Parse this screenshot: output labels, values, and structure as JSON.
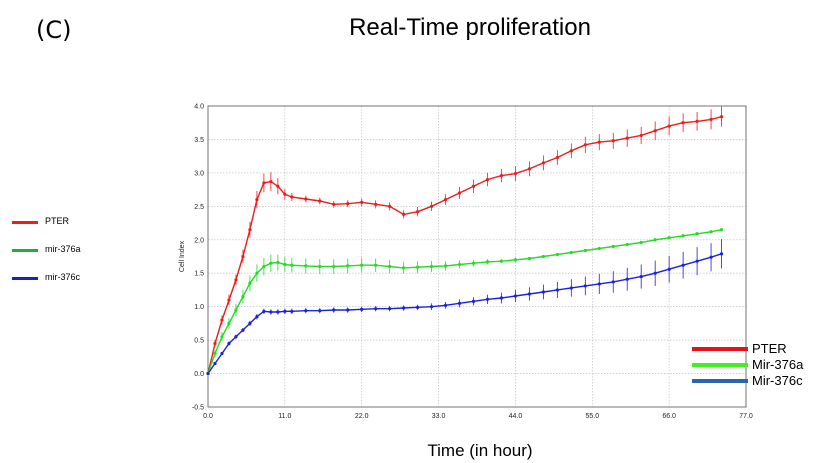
{
  "panel_label": "(C)",
  "chart_data": {
    "type": "line",
    "title": "Real-Time proliferation",
    "xlabel": "Time (in hour)",
    "ylabel": "Cell Index",
    "xlim": [
      0,
      77
    ],
    "ylim": [
      -0.5,
      4.0
    ],
    "xticks": [
      "0.0",
      "11.0",
      "22.0",
      "33.0",
      "44.0",
      "55.0",
      "66.0",
      "77.0"
    ],
    "yticks": [
      "-0.5",
      "0.0",
      "0.5",
      "1.0",
      "1.5",
      "2.0",
      "2.5",
      "3.0",
      "3.5",
      "4.0"
    ],
    "grid": true,
    "series": [
      {
        "name": "PTER",
        "color": "#ee1c1c",
        "x": [
          0,
          1,
          2,
          3,
          4,
          5,
          6,
          7,
          8,
          9,
          10,
          11,
          12,
          14,
          16,
          18,
          20,
          22,
          24,
          26,
          28,
          30,
          32,
          34,
          36,
          38,
          40,
          42,
          44,
          46,
          48,
          50,
          52,
          54,
          56,
          58,
          60,
          62,
          64,
          66,
          68,
          70,
          72,
          73.5
        ],
        "y": [
          0.0,
          0.45,
          0.8,
          1.1,
          1.4,
          1.75,
          2.15,
          2.6,
          2.85,
          2.87,
          2.8,
          2.68,
          2.64,
          2.61,
          2.58,
          2.53,
          2.54,
          2.56,
          2.53,
          2.5,
          2.38,
          2.42,
          2.5,
          2.6,
          2.7,
          2.8,
          2.9,
          2.96,
          2.99,
          3.06,
          3.15,
          3.23,
          3.33,
          3.42,
          3.46,
          3.48,
          3.52,
          3.56,
          3.63,
          3.7,
          3.75,
          3.77,
          3.8,
          3.84
        ],
        "err": [
          0.02,
          0.05,
          0.07,
          0.08,
          0.08,
          0.1,
          0.12,
          0.13,
          0.14,
          0.14,
          0.12,
          0.08,
          0.06,
          0.05,
          0.05,
          0.05,
          0.05,
          0.06,
          0.06,
          0.06,
          0.06,
          0.07,
          0.07,
          0.08,
          0.09,
          0.1,
          0.1,
          0.1,
          0.11,
          0.11,
          0.11,
          0.11,
          0.11,
          0.12,
          0.12,
          0.12,
          0.13,
          0.13,
          0.14,
          0.14,
          0.14,
          0.14,
          0.15,
          0.15
        ]
      },
      {
        "name": "mir-376a",
        "color": "#22dd22",
        "x": [
          0,
          1,
          2,
          3,
          4,
          5,
          6,
          7,
          8,
          9,
          10,
          11,
          12,
          14,
          16,
          18,
          20,
          22,
          24,
          26,
          28,
          30,
          32,
          34,
          36,
          38,
          40,
          42,
          44,
          46,
          48,
          50,
          52,
          54,
          56,
          58,
          60,
          62,
          64,
          66,
          68,
          70,
          72,
          73.5
        ],
        "y": [
          0.0,
          0.3,
          0.55,
          0.75,
          0.95,
          1.15,
          1.35,
          1.5,
          1.6,
          1.65,
          1.66,
          1.63,
          1.62,
          1.61,
          1.6,
          1.6,
          1.61,
          1.62,
          1.62,
          1.6,
          1.58,
          1.59,
          1.6,
          1.61,
          1.63,
          1.65,
          1.67,
          1.68,
          1.7,
          1.72,
          1.75,
          1.78,
          1.81,
          1.84,
          1.87,
          1.9,
          1.93,
          1.96,
          2.0,
          2.03,
          2.06,
          2.09,
          2.12,
          2.15
        ],
        "err": [
          0.02,
          0.05,
          0.07,
          0.08,
          0.09,
          0.1,
          0.12,
          0.13,
          0.13,
          0.13,
          0.12,
          0.11,
          0.11,
          0.11,
          0.11,
          0.11,
          0.11,
          0.11,
          0.1,
          0.1,
          0.09,
          0.09,
          0.08,
          0.07,
          0.06,
          0.05,
          0.04,
          0.03,
          0.03,
          0.02,
          0.02,
          0.02,
          0.02,
          0.02,
          0.02,
          0.02,
          0.02,
          0.02,
          0.02,
          0.02,
          0.02,
          0.02,
          0.02,
          0.02
        ]
      },
      {
        "name": "mir-376c",
        "color": "#1a22dd",
        "x": [
          0,
          1,
          2,
          3,
          4,
          5,
          6,
          7,
          8,
          9,
          10,
          11,
          12,
          14,
          16,
          18,
          20,
          22,
          24,
          26,
          28,
          30,
          32,
          34,
          36,
          38,
          40,
          42,
          44,
          46,
          48,
          50,
          52,
          54,
          56,
          58,
          60,
          62,
          64,
          66,
          68,
          70,
          72,
          73.5
        ],
        "y": [
          0.0,
          0.15,
          0.3,
          0.45,
          0.55,
          0.65,
          0.75,
          0.85,
          0.93,
          0.92,
          0.92,
          0.93,
          0.93,
          0.94,
          0.94,
          0.95,
          0.95,
          0.96,
          0.97,
          0.97,
          0.98,
          0.99,
          1.0,
          1.02,
          1.05,
          1.08,
          1.11,
          1.13,
          1.16,
          1.19,
          1.22,
          1.25,
          1.28,
          1.31,
          1.34,
          1.37,
          1.41,
          1.45,
          1.5,
          1.56,
          1.62,
          1.68,
          1.74,
          1.79
        ],
        "err": [
          0.01,
          0.02,
          0.02,
          0.03,
          0.03,
          0.03,
          0.04,
          0.04,
          0.04,
          0.04,
          0.04,
          0.04,
          0.04,
          0.04,
          0.04,
          0.04,
          0.04,
          0.04,
          0.04,
          0.04,
          0.04,
          0.04,
          0.05,
          0.05,
          0.06,
          0.06,
          0.07,
          0.08,
          0.09,
          0.1,
          0.11,
          0.12,
          0.13,
          0.14,
          0.15,
          0.16,
          0.17,
          0.18,
          0.19,
          0.2,
          0.2,
          0.21,
          0.21,
          0.22
        ]
      }
    ]
  },
  "left_legend": [
    {
      "label": "PTER",
      "color": "#ee1c1c"
    },
    {
      "label": "mir-376a",
      "color": "#22aa44"
    },
    {
      "label": "mir-376c",
      "color": "#1a22bb"
    }
  ],
  "right_legend": [
    {
      "label": "PTER",
      "color": "#e8101a"
    },
    {
      "label": "Mir-376a",
      "color": "#44ee22"
    },
    {
      "label": "Mir-376c",
      "color": "#2a64b0"
    }
  ]
}
